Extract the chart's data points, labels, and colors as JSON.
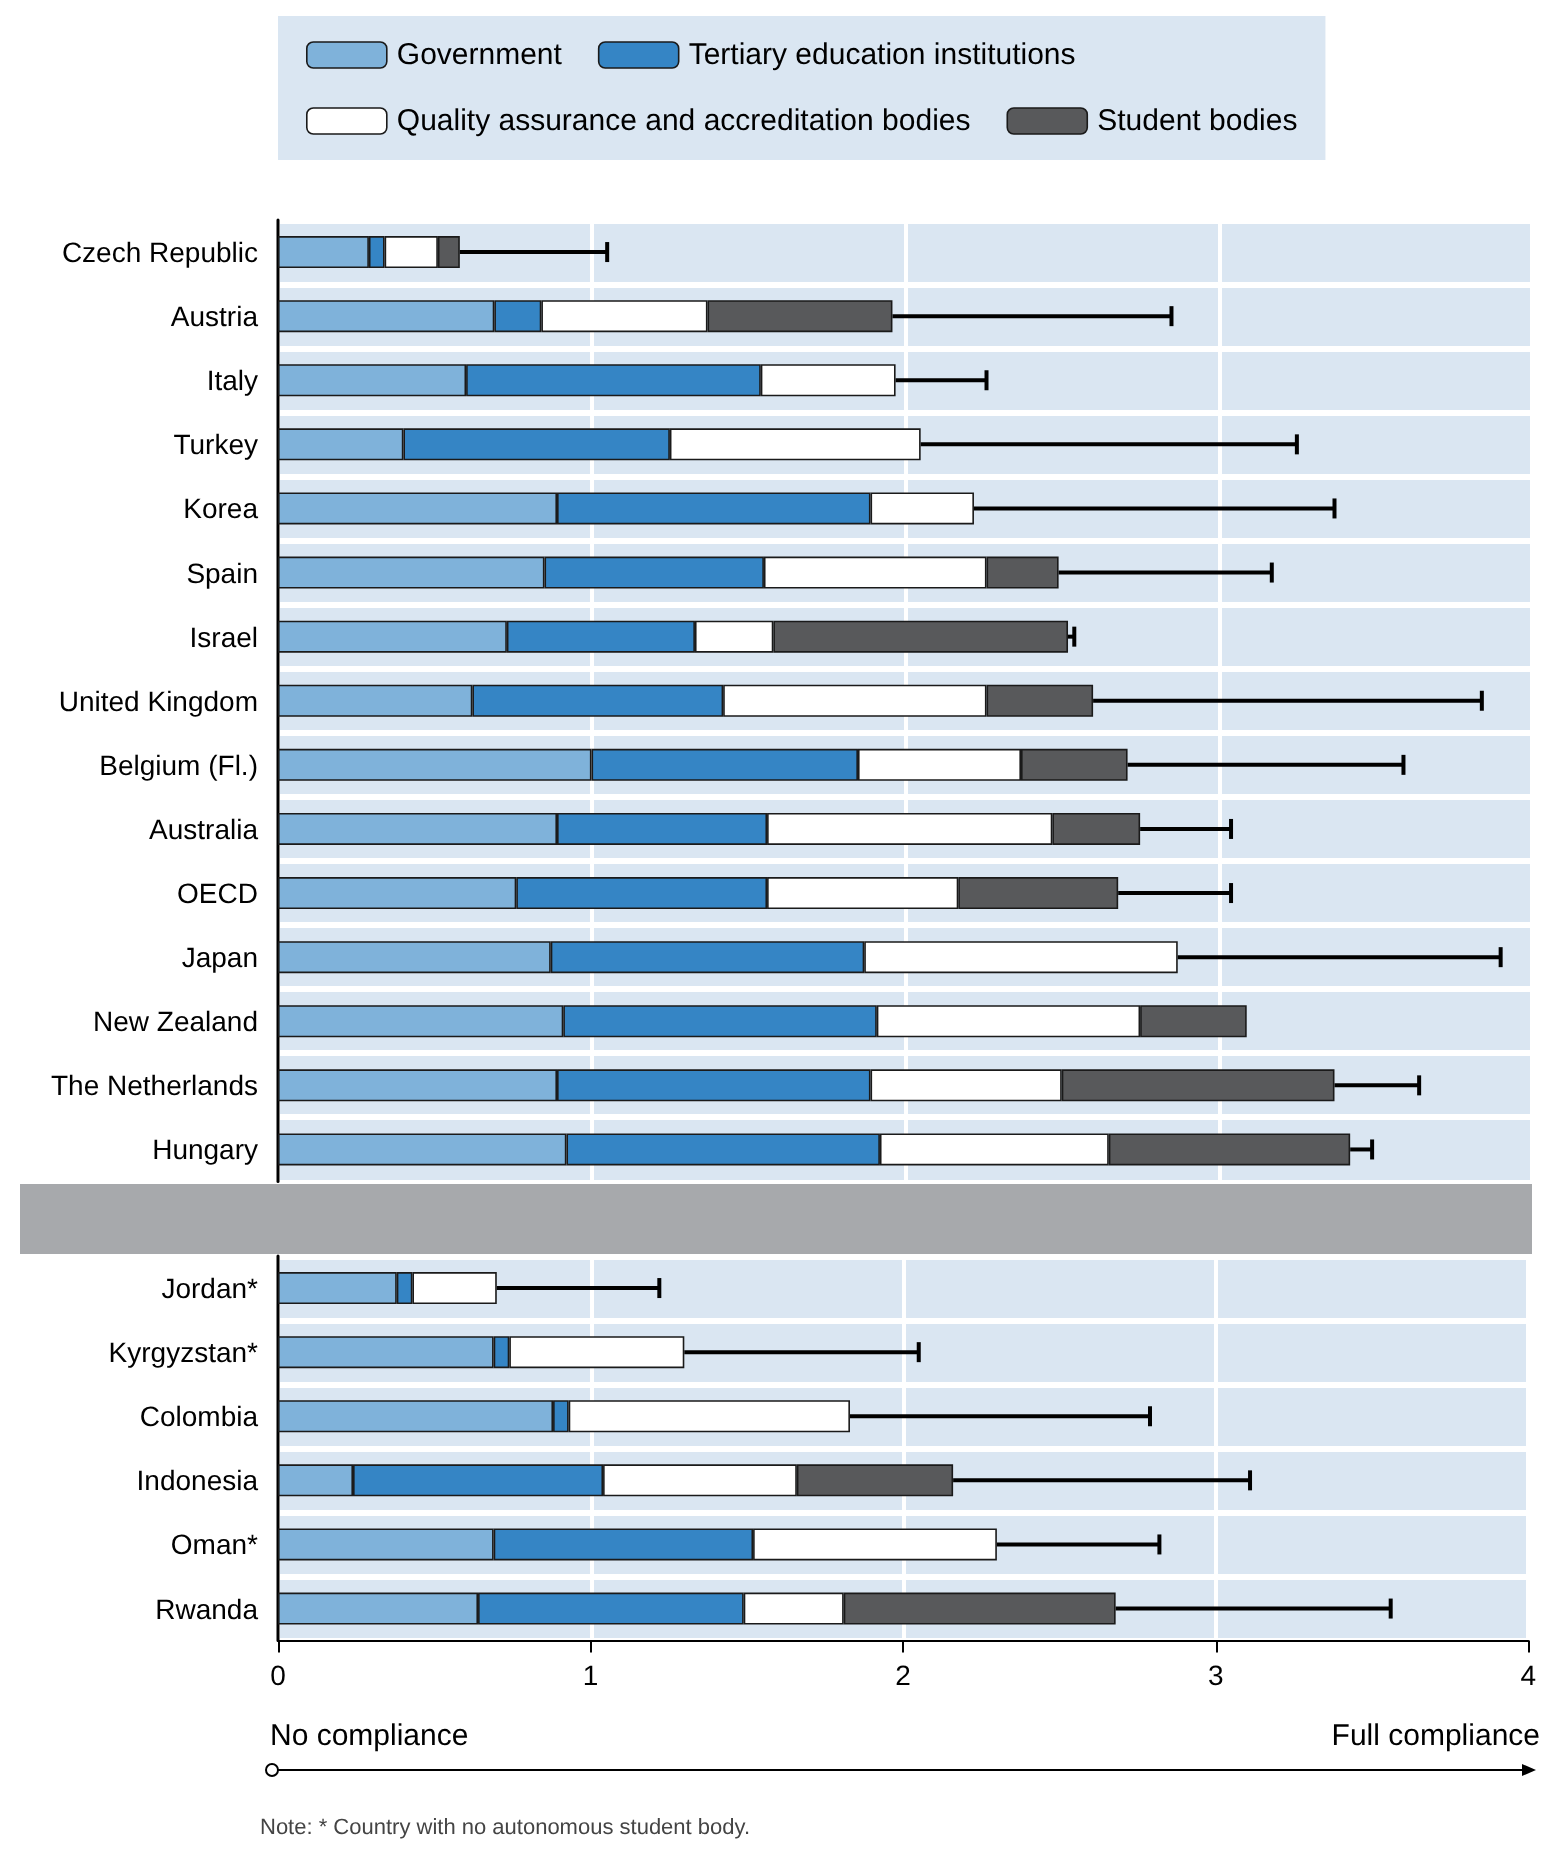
{
  "chart_data": [
    {
      "type": "bar",
      "orientation": "horizontal",
      "stacked": true,
      "legend": "top",
      "grid": true,
      "tick_labels": "y",
      "xlim": [
        0,
        4
      ],
      "xticks": [
        0,
        1,
        2,
        3,
        4
      ],
      "categories": [
        "Czech Republic",
        "Austria",
        "Italy",
        "Turkey",
        "Korea",
        "Spain",
        "Israel",
        "United Kingdom",
        "Belgium (Fl.)",
        "Australia",
        "OECD",
        "Japan",
        "New Zealand",
        "The Netherlands",
        "Hungary"
      ],
      "series": [
        {
          "name": "Government",
          "color": "#7fb2da",
          "values": [
            0.29,
            0.69,
            0.6,
            0.4,
            0.89,
            0.85,
            0.73,
            0.62,
            1.0,
            0.89,
            0.76,
            0.87,
            0.91,
            0.89,
            0.92
          ]
        },
        {
          "name": "Tertiary education institutions",
          "color": "#3585c5",
          "values": [
            0.05,
            0.15,
            0.94,
            0.85,
            1.0,
            0.7,
            0.6,
            0.8,
            0.85,
            0.67,
            0.8,
            1.0,
            1.0,
            1.0,
            1.0
          ]
        },
        {
          "name": "Quality assurance and accreditation bodies",
          "color": "#ffffff",
          "values": [
            0.17,
            0.53,
            0.43,
            0.8,
            0.33,
            0.71,
            0.25,
            0.84,
            0.52,
            0.91,
            0.61,
            1.0,
            0.84,
            0.61,
            0.73
          ],
          "errors": [
            null,
            null,
            [
              1.97,
              2.26
            ],
            [
              2.05,
              3.25
            ],
            [
              2.22,
              3.37
            ],
            null,
            null,
            null,
            null,
            null,
            null,
            [
              2.87,
              3.9
            ],
            null,
            null,
            null
          ]
        },
        {
          "name": "Student bodies",
          "color": "#58595b",
          "values": [
            0.07,
            0.59,
            null,
            null,
            null,
            0.23,
            0.94,
            0.34,
            0.34,
            0.28,
            0.51,
            null,
            0.34,
            0.87,
            0.77
          ],
          "errors": [
            [
              0.58,
              1.05
            ],
            [
              1.96,
              2.85
            ],
            null,
            null,
            null,
            [
              2.49,
              3.17
            ],
            [
              2.52,
              2.54
            ],
            [
              2.6,
              3.84
            ],
            [
              2.71,
              3.59
            ],
            [
              2.75,
              3.04
            ],
            [
              2.68,
              3.04
            ],
            null,
            null,
            [
              3.37,
              3.64
            ],
            [
              3.42,
              3.49
            ]
          ]
        }
      ]
    },
    {
      "type": "bar",
      "orientation": "horizontal",
      "stacked": true,
      "grid": true,
      "xlim": [
        0,
        4
      ],
      "xticks": [
        0,
        1,
        2,
        3,
        4
      ],
      "categories": [
        "Jordan*",
        "Kyrgyzstan*",
        "Colombia",
        "Indonesia",
        "Oman*",
        "Rwanda"
      ],
      "series": [
        {
          "color": "#7fb2da",
          "values": [
            0.38,
            0.69,
            0.88,
            0.24,
            0.69,
            0.64
          ]
        },
        {
          "color": "#3585c5",
          "values": [
            0.05,
            0.05,
            0.05,
            0.8,
            0.83,
            0.85
          ]
        },
        {
          "color": "#ffffff",
          "values": [
            0.27,
            0.56,
            0.9,
            0.62,
            0.78,
            0.32
          ],
          "errors": [
            [
              0.7,
              1.22
            ],
            [
              1.3,
              2.05
            ],
            [
              1.83,
              2.79
            ],
            null,
            [
              2.3,
              2.82
            ],
            null
          ]
        },
        {
          "color": "#58595b",
          "values": [
            null,
            null,
            null,
            0.5,
            null,
            0.87
          ],
          "errors": [
            null,
            null,
            null,
            [
              2.16,
              3.11
            ],
            null,
            [
              2.68,
              3.56
            ]
          ]
        }
      ],
      "annotations": [
        "No compliance",
        "Full compliance",
        "Note: * Country with no autonomous student body."
      ]
    }
  ]
}
